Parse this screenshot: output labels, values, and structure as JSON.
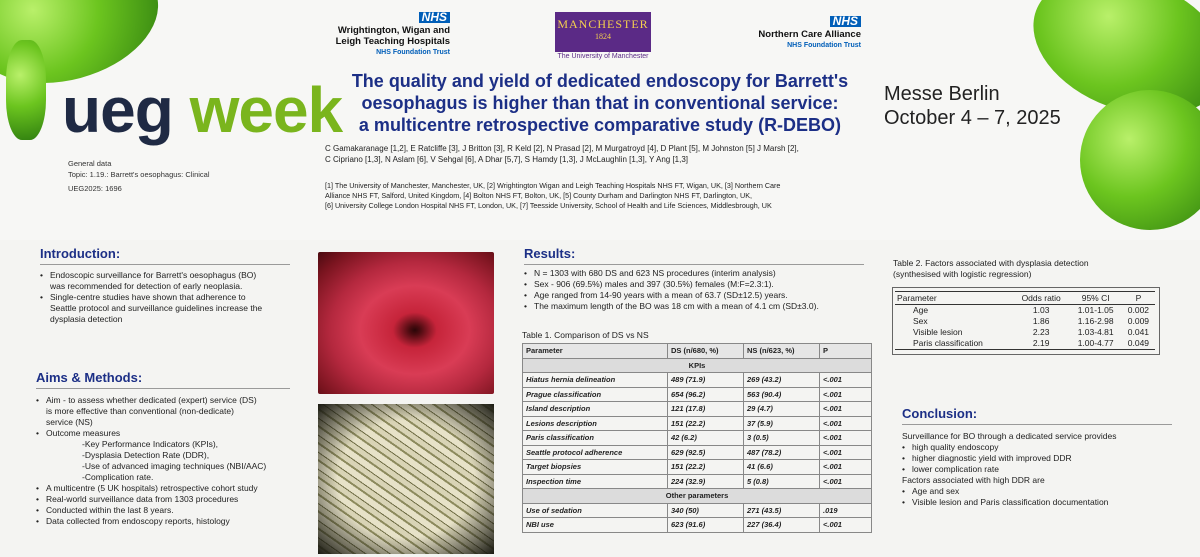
{
  "branding": {
    "ueg_part1": "ueg",
    "ueg_part2": "week",
    "venue_city": "Messe Berlin",
    "venue_dates": "October 4 – 7, 2025"
  },
  "logos": {
    "wwl_badge": "NHS",
    "wwl_name_line1": "Wrightington, Wigan and",
    "wwl_name_line2": "Leigh Teaching Hospitals",
    "wwl_trust": "NHS Foundation Trust",
    "manc_name": "MANCHESTER",
    "manc_year": "1824",
    "manc_sub": "The University of Manchester",
    "nca_badge": "NHS",
    "nca_name": "Northern Care Alliance",
    "nca_trust": "NHS Foundation Trust"
  },
  "general": {
    "label": "General data",
    "topic": "Topic: 1.19.: Barrett's oesophagus: Clinical",
    "code": "UEG2025: 1696"
  },
  "title": {
    "line1": "The quality and yield of dedicated endoscopy for Barrett's",
    "line2": "oesophagus is higher than that in conventional service:",
    "line3": "a multicentre retrospective comparative study (R-DEBO)"
  },
  "authors": {
    "line1": "C Gamakaranage [1,2], E Ratcliffe [3], J Britton [3], R Keld [2], N Prasad [2], M Murgatroyd [4], D Plant [5], M Johnston [5] J Marsh [2],",
    "line2": "C Cipriano [1,3], N Aslam [6], V Sehgal [6], A Dhar [5,7], S Hamdy [1,3], J McLaughlin [1,3], Y Ang [1,3]"
  },
  "affiliations": {
    "line1": "[1] The University of Manchester, Manchester, UK, [2] Wrightington Wigan and Leigh Teaching Hospitals NHS FT, Wigan, UK, [3] Northern Care",
    "line2": "Alliance NHS FT, Salford, United Kingdom, [4] Bolton NHS FT, Bolton, UK, [5] County Durham and Darlington NHS FT, Darlington,  UK,",
    "line3": "[6] University College London Hospital NHS FT, London, UK, [7] Teesside University,   School of Health and Life Sciences, Middlesbrough, UK"
  },
  "introduction": {
    "heading": "Introduction:",
    "b1a": "Endoscopic surveillance for Barrett's oesophagus (BO)",
    "b1b": "was recommended for detection of early neoplasia.",
    "b2a": "Single-centre studies have shown that adherence to",
    "b2b": "Seattle protocol and surveillance guidelines increase the",
    "b2c": "dysplasia detection"
  },
  "aims": {
    "heading": "Aims & Methods:",
    "b1a": "Aim - to assess whether dedicated (expert) service (DS)",
    "b1b": "is more effective than conventional (non-dedicate)",
    "b1c": "service (NS)",
    "b2": "Outcome measures",
    "s1": "-Key Performance Indicators (KPIs),",
    "s2": "-Dysplasia Detection Rate (DDR),",
    "s3": "-Use of advanced imaging techniques (NBI/AAC)",
    "s4": "-Complication rate.",
    "b3": "A multicentre (5 UK hospitals) retrospective cohort study",
    "b4": "Real-world surveillance data from 1303 procedures",
    "b5": "Conducted within the last 8 years.",
    "b6": "Data collected from endoscopy reports, histology"
  },
  "results": {
    "heading": "Results:",
    "b1": "N = 1303 with 680 DS and 623 NS procedures (interim analysis)",
    "b2": "Sex - 906 (69.5%) males and 397 (30.5%) females (M:F=2.3:1).",
    "b3": "Age ranged from 14-90 years with a mean of 63.7 (SD±12.5) years.",
    "b4": "The maximum length of the BO was 18 cm with a mean of 4.1 cm (SD±3.0)."
  },
  "table1": {
    "caption": "Table 1. Comparison of DS vs NS",
    "headers": [
      "Parameter",
      "DS (n/680, %)",
      "NS (n/623, %)",
      "P"
    ],
    "group1": "KPIs",
    "rows": [
      [
        "Hiatus hernia delineation",
        "489 (71.9)",
        "269 (43.2)",
        "<.001"
      ],
      [
        "Prague classification",
        "654 (96.2)",
        "563 (90.4)",
        "<.001"
      ],
      [
        "Island description",
        "121 (17.8)",
        "29 (4.7)",
        "<.001"
      ],
      [
        "Lesions description",
        "151 (22.2)",
        "37 (5.9)",
        "<.001"
      ],
      [
        "Paris classification",
        "42 (6.2)",
        "3 (0.5)",
        "<.001"
      ],
      [
        "Seattle protocol adherence",
        "629 (92.5)",
        "487 (78.2)",
        "<.001"
      ],
      [
        "Target biopsies",
        "151 (22.2)",
        "41 (6.6)",
        "<.001"
      ],
      [
        "Inspection time",
        "224 (32.9)",
        "5 (0.8)",
        "<.001"
      ]
    ],
    "group2": "Other parameters",
    "rows2": [
      [
        "Use of sedation",
        "340 (50)",
        "271 (43.5)",
        ".019"
      ],
      [
        "NBI use",
        "623 (91.6)",
        "227 (36.4)",
        "<.001"
      ]
    ]
  },
  "table2": {
    "caption1": "Table 2. Factors associated with dysplasia detection",
    "caption2": "(synthesised with logistic regression)",
    "headers": [
      "Parameter",
      "Odds ratio",
      "95% CI",
      "P"
    ],
    "rows": [
      [
        "Age",
        "1.03",
        "1.01-1.05",
        "0.002"
      ],
      [
        "Sex",
        "1.86",
        "1.16-2.98",
        "0.009"
      ],
      [
        "Visible lesion",
        "2.23",
        "1.03-4.81",
        "0.041"
      ],
      [
        "Paris classification",
        "2.19",
        "1.00-4.77",
        "0.049"
      ]
    ]
  },
  "conclusion": {
    "heading": "Conclusion:",
    "intro": "Surveillance for BO through a dedicated service provides",
    "b1": "high quality endoscopy",
    "b2": "higher diagnostic yield with improved DDR",
    "b3": "lower complication rate",
    "factors": "Factors associated with high DDR are",
    "b4": "Age and sex",
    "b5": "Visible lesion and Paris classification documentation"
  }
}
